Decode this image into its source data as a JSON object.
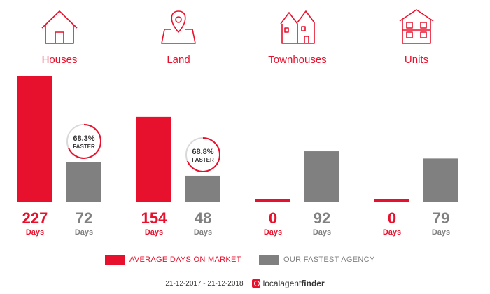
{
  "categories": [
    {
      "label": "Houses",
      "icon": "house-icon"
    },
    {
      "label": "Land",
      "icon": "map-pin-icon"
    },
    {
      "label": "Townhouses",
      "icon": "townhouses-icon"
    },
    {
      "label": "Units",
      "icon": "units-icon"
    }
  ],
  "colors": {
    "market": "#e8112d",
    "agency": "#808080",
    "text_dark": "#808080"
  },
  "unit_label": "Days",
  "legend": {
    "market_label": "AVERAGE DAYS ON MARKET",
    "agency_label": "OUR FASTEST AGENCY"
  },
  "footer": {
    "date_range": "21-12-2017 - 21-12-2018",
    "brand_local": "localagent",
    "brand_finder": "finder"
  },
  "chart_data": {
    "type": "bar",
    "categories": [
      "Houses",
      "Land",
      "Townhouses",
      "Units"
    ],
    "series": [
      {
        "name": "AVERAGE DAYS ON MARKET",
        "values": [
          227,
          154,
          0,
          0
        ]
      },
      {
        "name": "OUR FASTEST AGENCY",
        "values": [
          72,
          48,
          92,
          79
        ]
      }
    ],
    "ylim": [
      0,
      227
    ],
    "annotations": [
      {
        "category": "Houses",
        "percent": "68.3%",
        "text": "FASTER",
        "progress": 0.683
      },
      {
        "category": "Land",
        "percent": "68.8%",
        "text": "FASTER",
        "progress": 0.688
      }
    ]
  }
}
